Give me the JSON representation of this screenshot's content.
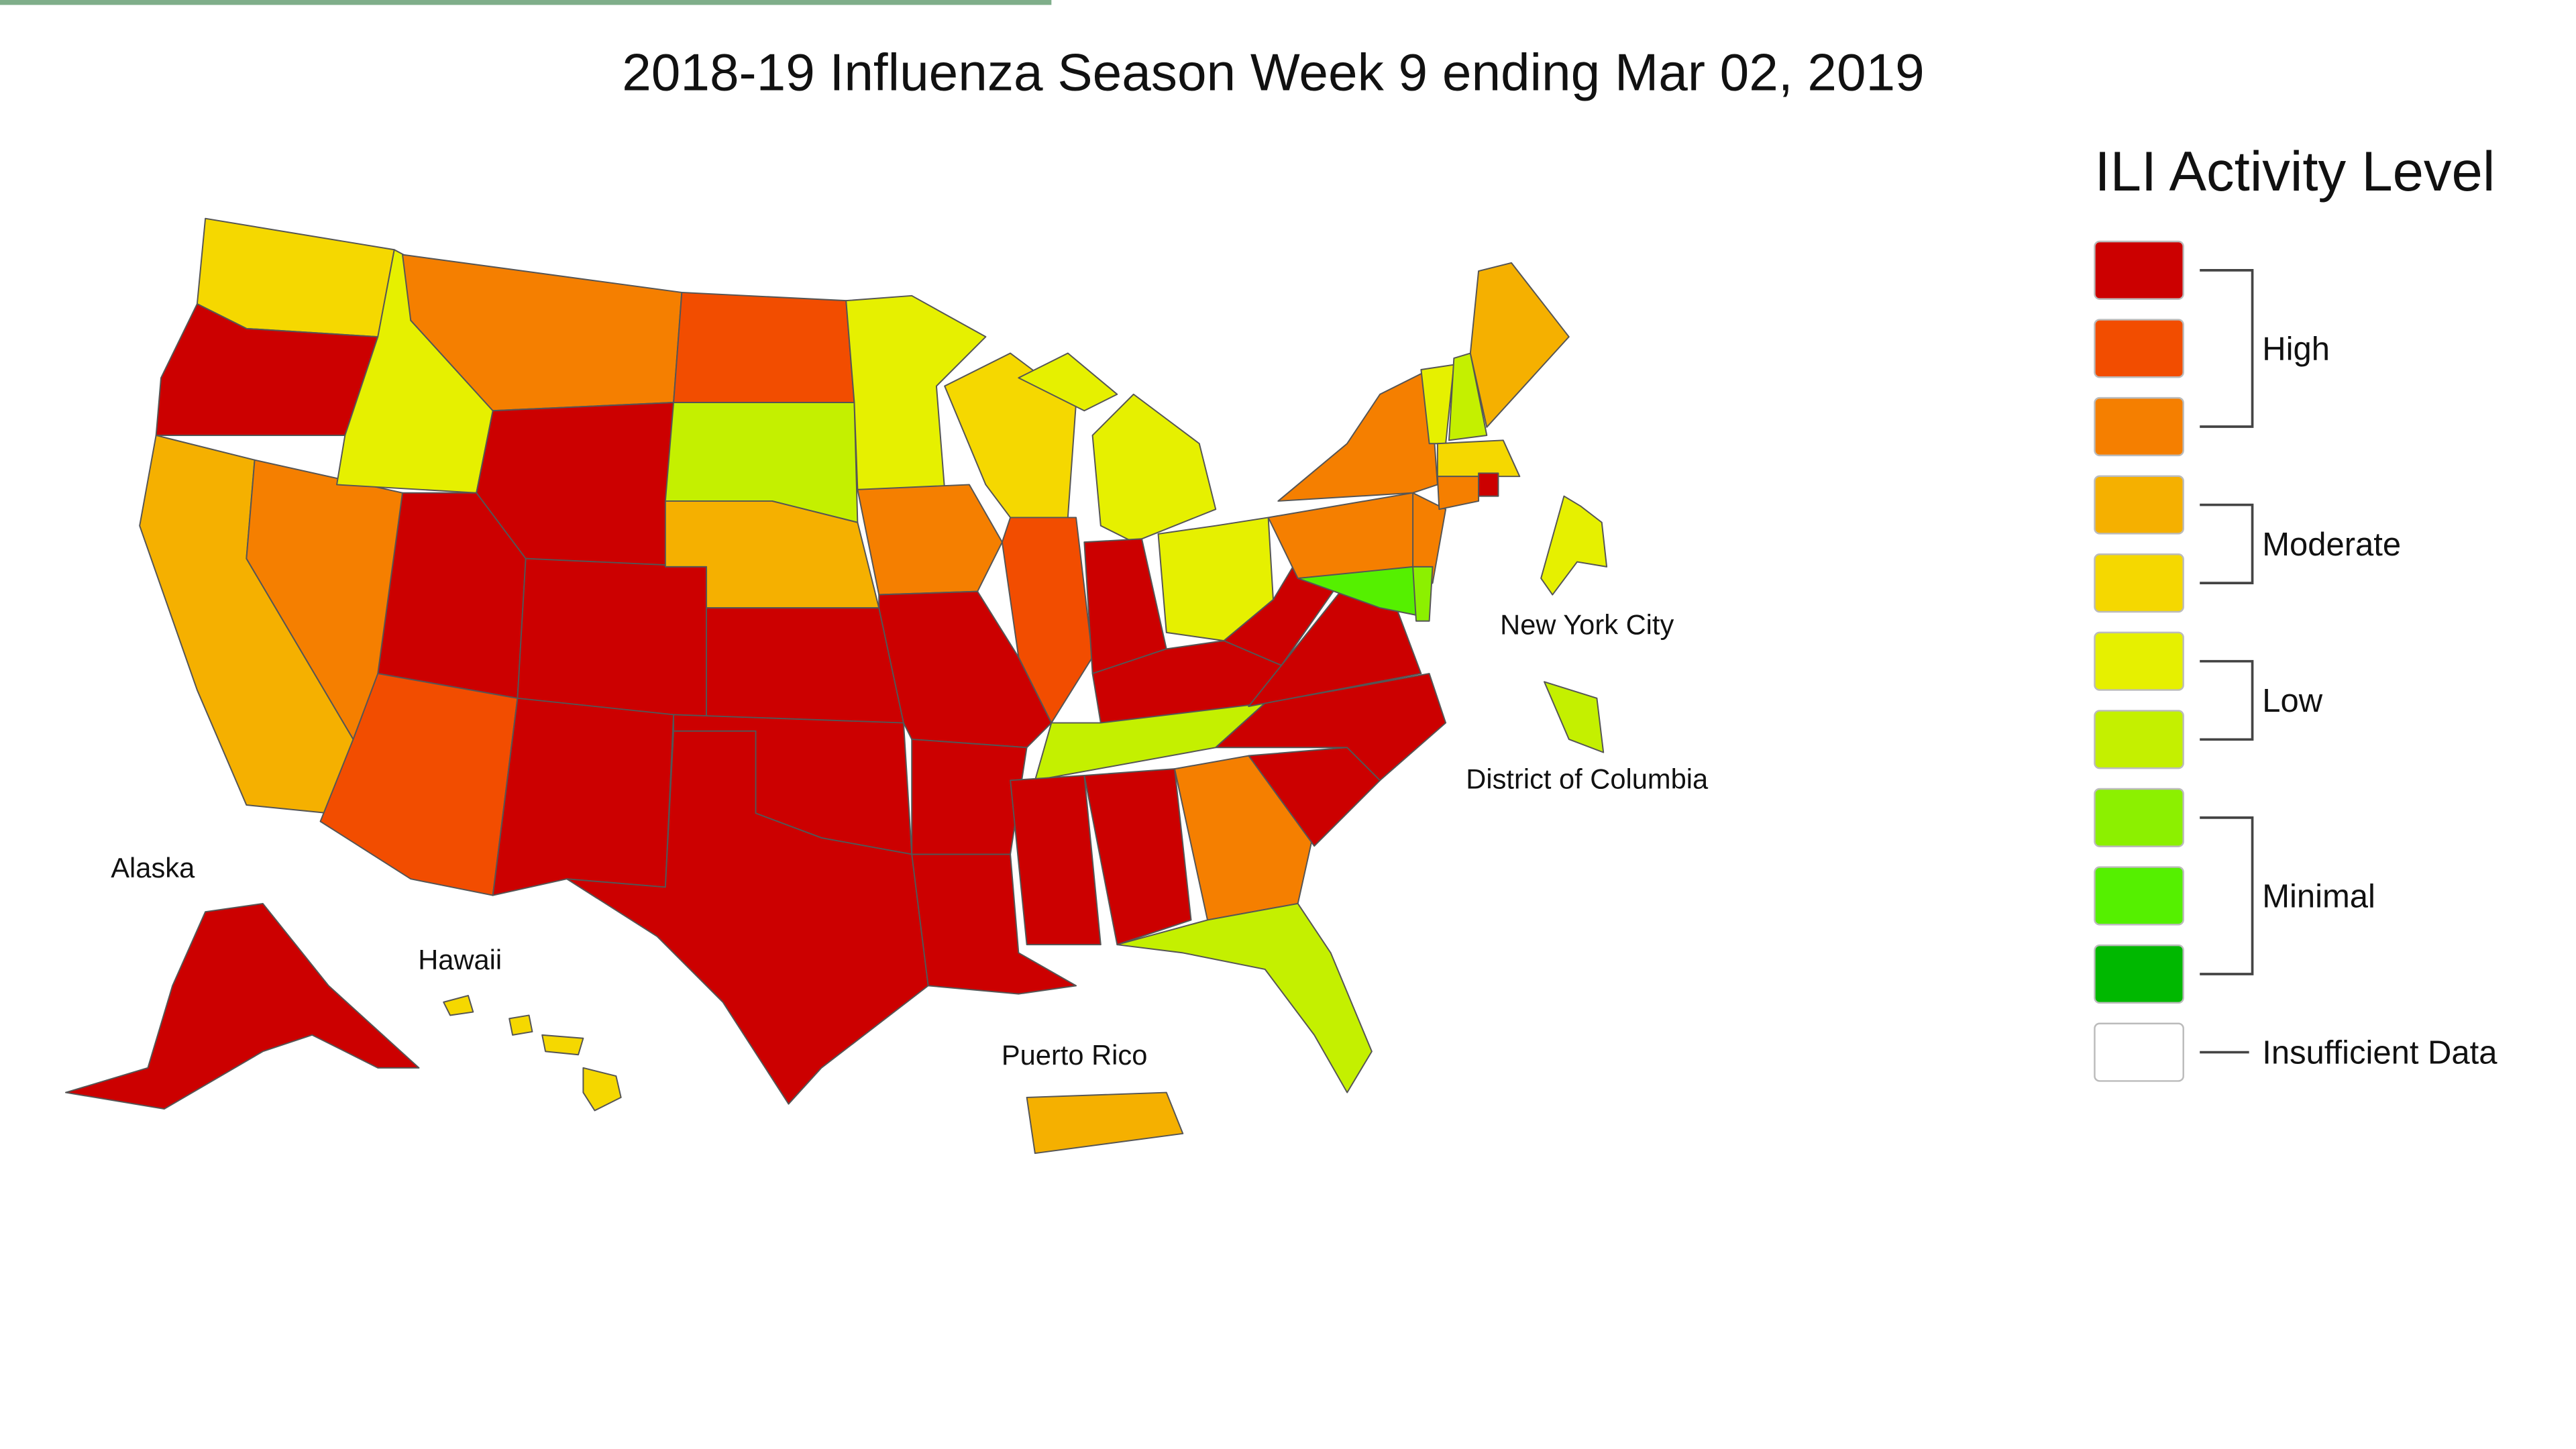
{
  "title": "2018-19 Influenza Season Week 9 ending Mar 02, 2019",
  "map_labels": [
    "New York City",
    "District of Columbia",
    "Alaska",
    "Hawaii",
    "Puerto Rico"
  ],
  "legend": {
    "title": "ILI Activity Level",
    "groups": [
      {
        "label": "High",
        "colors": [
          "#cc0000",
          "#f24d00",
          "#f57f00"
        ]
      },
      {
        "label": "Moderate",
        "colors": [
          "#f5b000",
          "#f5d800"
        ]
      },
      {
        "label": "Low",
        "colors": [
          "#e6f000",
          "#c4f000"
        ]
      },
      {
        "label": "Minimal",
        "colors": [
          "#8cf000",
          "#55f000",
          "#00b800"
        ]
      },
      {
        "label": "Insufficient Data",
        "colors": [
          "#ffffff"
        ]
      }
    ]
  }
}
